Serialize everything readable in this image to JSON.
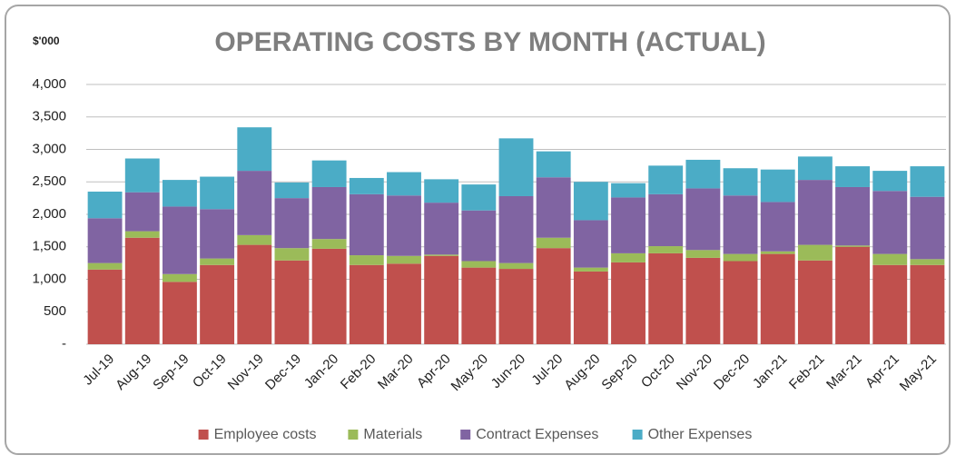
{
  "chart_data": {
    "type": "stacked_bar",
    "title": "OPERATING COSTS BY MONTH (ACTUAL)",
    "y_label": "$'000",
    "categories": [
      "Jul-19",
      "Aug-19",
      "Sep-19",
      "Oct-19",
      "Nov-19",
      "Dec-19",
      "Jan-20",
      "Feb-20",
      "Mar-20",
      "Apr-20",
      "May-20",
      "Jun-20",
      "Jul-20",
      "Aug-20",
      "Sep-20",
      "Oct-20",
      "Nov-20",
      "Dec-20",
      "Jan-21",
      "Feb-21",
      "Mar-21",
      "Apr-21",
      "May-21"
    ],
    "series": [
      {
        "name": "Employee costs",
        "color": "#c0504d",
        "values": [
          1150,
          1640,
          960,
          1220,
          1530,
          1290,
          1470,
          1220,
          1240,
          1360,
          1180,
          1160,
          1480,
          1120,
          1260,
          1400,
          1330,
          1280,
          1390,
          1290,
          1500,
          1220,
          1220
        ]
      },
      {
        "name": "Materials",
        "color": "#9bbb59",
        "values": [
          100,
          100,
          120,
          100,
          150,
          190,
          150,
          150,
          120,
          20,
          100,
          90,
          160,
          60,
          140,
          110,
          120,
          110,
          40,
          240,
          20,
          170,
          90
        ]
      },
      {
        "name": "Contract Expenses",
        "color": "#8064a2",
        "values": [
          690,
          600,
          1040,
          760,
          990,
          770,
          800,
          940,
          930,
          800,
          780,
          1030,
          930,
          730,
          860,
          800,
          950,
          900,
          760,
          1000,
          900,
          970,
          960
        ]
      },
      {
        "name": "Other Expenses",
        "color": "#4bacc6",
        "values": [
          410,
          520,
          410,
          500,
          670,
          240,
          410,
          250,
          360,
          360,
          400,
          890,
          400,
          590,
          220,
          440,
          440,
          420,
          500,
          360,
          320,
          310,
          470
        ]
      }
    ],
    "ylim": [
      0,
      4000
    ],
    "yticks": [
      {
        "value": 0,
        "label": "-"
      },
      500,
      {
        "value": 1000,
        "label": "1,000"
      },
      {
        "value": 1500,
        "label": "1,500"
      },
      {
        "value": 2000,
        "label": "2,000"
      },
      {
        "value": 2500,
        "label": "2,500"
      },
      {
        "value": 3000,
        "label": "3,000"
      },
      {
        "value": 3500,
        "label": "3,500"
      },
      {
        "value": 4000,
        "label": "4,000"
      }
    ],
    "grid": true,
    "legend": "bottom"
  }
}
